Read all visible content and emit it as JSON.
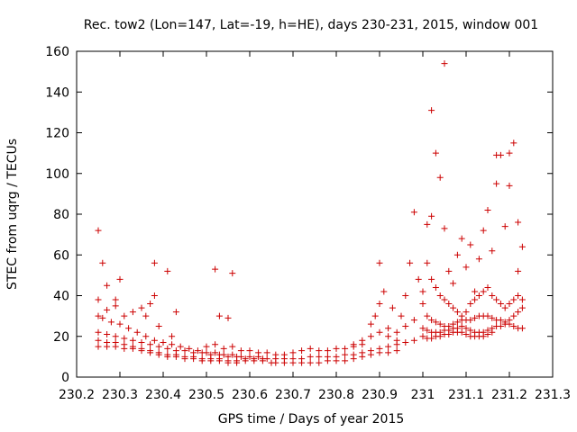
{
  "chart_data": {
    "type": "scatter",
    "title": "Rec. tow2 (Lon=147, Lat=-19, h=HE), days 230-231, 2015, window 001",
    "xlabel": "GPS time / Days of year 2015",
    "ylabel": "STEC from uqrg / TECUs",
    "xlim": [
      230.2,
      231.3
    ],
    "ylim": [
      0,
      160
    ],
    "xticks": [
      "230.2",
      "230.3",
      "230.4",
      "230.5",
      "230.6",
      "230.7",
      "230.8",
      "230.9",
      "231",
      "231.1",
      "231.2",
      "231.3"
    ],
    "yticks": [
      "0",
      "20",
      "40",
      "60",
      "80",
      "100",
      "120",
      "140",
      "160"
    ],
    "marker": "plus",
    "color": "#cc0000",
    "grid": false,
    "legend": "none",
    "points": [
      [
        230.25,
        72
      ],
      [
        230.26,
        56
      ],
      [
        230.27,
        45
      ],
      [
        230.29,
        38
      ],
      [
        230.3,
        48
      ],
      [
        230.35,
        34
      ],
      [
        230.37,
        36
      ],
      [
        230.38,
        40
      ],
      [
        230.38,
        56
      ],
      [
        230.41,
        52
      ],
      [
        230.43,
        32
      ],
      [
        230.52,
        53
      ],
      [
        230.53,
        30
      ],
      [
        230.55,
        29
      ],
      [
        230.56,
        51
      ],
      [
        230.25,
        38
      ],
      [
        230.27,
        33
      ],
      [
        230.29,
        35
      ],
      [
        230.31,
        30
      ],
      [
        230.33,
        32
      ],
      [
        230.36,
        30
      ],
      [
        230.39,
        25
      ],
      [
        230.42,
        20
      ],
      [
        230.25,
        30
      ],
      [
        230.26,
        29
      ],
      [
        230.28,
        27
      ],
      [
        230.3,
        26
      ],
      [
        230.32,
        24
      ],
      [
        230.34,
        22
      ],
      [
        230.36,
        20
      ],
      [
        230.38,
        18
      ],
      [
        230.4,
        17
      ],
      [
        230.42,
        16
      ],
      [
        230.44,
        15
      ],
      [
        230.46,
        14
      ],
      [
        230.48,
        13
      ],
      [
        230.5,
        12
      ],
      [
        230.52,
        12
      ],
      [
        230.54,
        11
      ],
      [
        230.56,
        11
      ],
      [
        230.58,
        10
      ],
      [
        230.6,
        10
      ],
      [
        230.62,
        10
      ],
      [
        230.25,
        22
      ],
      [
        230.27,
        21
      ],
      [
        230.29,
        20
      ],
      [
        230.31,
        19
      ],
      [
        230.33,
        18
      ],
      [
        230.35,
        17
      ],
      [
        230.37,
        16
      ],
      [
        230.39,
        15
      ],
      [
        230.41,
        14
      ],
      [
        230.43,
        13
      ],
      [
        230.45,
        13
      ],
      [
        230.47,
        12
      ],
      [
        230.49,
        12
      ],
      [
        230.51,
        11
      ],
      [
        230.53,
        11
      ],
      [
        230.55,
        10
      ],
      [
        230.57,
        10
      ],
      [
        230.59,
        9
      ],
      [
        230.61,
        9
      ],
      [
        230.63,
        9
      ],
      [
        230.25,
        18
      ],
      [
        230.27,
        17
      ],
      [
        230.29,
        17
      ],
      [
        230.31,
        16
      ],
      [
        230.33,
        15
      ],
      [
        230.35,
        14
      ],
      [
        230.37,
        13
      ],
      [
        230.39,
        12
      ],
      [
        230.41,
        11
      ],
      [
        230.43,
        11
      ],
      [
        230.45,
        10
      ],
      [
        230.47,
        10
      ],
      [
        230.49,
        9
      ],
      [
        230.51,
        9
      ],
      [
        230.53,
        9
      ],
      [
        230.55,
        8
      ],
      [
        230.57,
        8
      ],
      [
        230.59,
        8
      ],
      [
        230.61,
        8
      ],
      [
        230.63,
        8
      ],
      [
        230.65,
        7
      ],
      [
        230.25,
        15
      ],
      [
        230.27,
        15
      ],
      [
        230.29,
        15
      ],
      [
        230.31,
        14
      ],
      [
        230.33,
        14
      ],
      [
        230.35,
        13
      ],
      [
        230.37,
        12
      ],
      [
        230.39,
        11
      ],
      [
        230.41,
        10
      ],
      [
        230.43,
        10
      ],
      [
        230.45,
        9
      ],
      [
        230.47,
        9
      ],
      [
        230.49,
        8
      ],
      [
        230.51,
        8
      ],
      [
        230.53,
        8
      ],
      [
        230.55,
        7
      ],
      [
        230.57,
        7
      ],
      [
        230.5,
        15
      ],
      [
        230.52,
        16
      ],
      [
        230.54,
        14
      ],
      [
        230.56,
        15
      ],
      [
        230.58,
        13
      ],
      [
        230.6,
        13
      ],
      [
        230.62,
        12
      ],
      [
        230.64,
        12
      ],
      [
        230.66,
        11
      ],
      [
        230.68,
        11
      ],
      [
        230.7,
        12
      ],
      [
        230.72,
        13
      ],
      [
        230.74,
        14
      ],
      [
        230.76,
        13
      ],
      [
        230.78,
        13
      ],
      [
        230.8,
        14
      ],
      [
        230.82,
        14
      ],
      [
        230.84,
        15
      ],
      [
        230.86,
        16
      ],
      [
        230.64,
        9
      ],
      [
        230.66,
        9
      ],
      [
        230.68,
        9
      ],
      [
        230.7,
        9
      ],
      [
        230.72,
        9
      ],
      [
        230.74,
        10
      ],
      [
        230.76,
        10
      ],
      [
        230.78,
        10
      ],
      [
        230.8,
        10
      ],
      [
        230.82,
        11
      ],
      [
        230.84,
        11
      ],
      [
        230.86,
        12
      ],
      [
        230.88,
        13
      ],
      [
        230.9,
        14
      ],
      [
        230.92,
        15
      ],
      [
        230.94,
        16
      ],
      [
        230.66,
        7
      ],
      [
        230.68,
        7
      ],
      [
        230.7,
        7
      ],
      [
        230.72,
        7
      ],
      [
        230.74,
        7
      ],
      [
        230.76,
        7
      ],
      [
        230.78,
        8
      ],
      [
        230.8,
        8
      ],
      [
        230.82,
        8
      ],
      [
        230.84,
        9
      ],
      [
        230.86,
        10
      ],
      [
        230.88,
        11
      ],
      [
        230.9,
        12
      ],
      [
        230.92,
        12
      ],
      [
        230.94,
        13
      ],
      [
        230.88,
        26
      ],
      [
        230.89,
        30
      ],
      [
        230.9,
        36
      ],
      [
        230.91,
        42
      ],
      [
        230.9,
        56
      ],
      [
        230.93,
        34
      ],
      [
        230.95,
        30
      ],
      [
        230.96,
        40
      ],
      [
        230.97,
        56
      ],
      [
        230.98,
        81
      ],
      [
        230.99,
        48
      ],
      [
        231.0,
        42
      ],
      [
        230.92,
        24
      ],
      [
        230.94,
        22
      ],
      [
        230.96,
        25
      ],
      [
        230.98,
        28
      ],
      [
        231.01,
        75
      ],
      [
        231.02,
        79
      ],
      [
        231.02,
        131
      ],
      [
        231.03,
        110
      ],
      [
        231.04,
        98
      ],
      [
        231.05,
        73
      ],
      [
        231.05,
        154
      ],
      [
        231.06,
        52
      ],
      [
        231.07,
        46
      ],
      [
        231.08,
        60
      ],
      [
        231.09,
        68
      ],
      [
        231.1,
        54
      ],
      [
        231.11,
        65
      ],
      [
        231.12,
        42
      ],
      [
        231.13,
        58
      ],
      [
        231.14,
        72
      ],
      [
        231.15,
        82
      ],
      [
        231.16,
        62
      ],
      [
        231.17,
        95
      ],
      [
        231.17,
        109
      ],
      [
        231.18,
        109
      ],
      [
        231.19,
        74
      ],
      [
        231.2,
        110
      ],
      [
        231.2,
        94
      ],
      [
        231.21,
        115
      ],
      [
        231.22,
        76
      ],
      [
        231.23,
        64
      ],
      [
        231.22,
        52
      ],
      [
        231.01,
        56
      ],
      [
        231.02,
        48
      ],
      [
        231.03,
        44
      ],
      [
        231.04,
        40
      ],
      [
        231.05,
        38
      ],
      [
        231.06,
        36
      ],
      [
        231.07,
        34
      ],
      [
        231.08,
        32
      ],
      [
        231.09,
        30
      ],
      [
        231.1,
        32
      ],
      [
        231.11,
        36
      ],
      [
        231.12,
        38
      ],
      [
        231.13,
        40
      ],
      [
        231.14,
        42
      ],
      [
        231.15,
        44
      ],
      [
        231.16,
        40
      ],
      [
        231.17,
        38
      ],
      [
        231.18,
        36
      ],
      [
        231.19,
        34
      ],
      [
        231.2,
        36
      ],
      [
        231.21,
        38
      ],
      [
        231.22,
        40
      ],
      [
        231.23,
        38
      ],
      [
        231.0,
        36
      ],
      [
        231.01,
        30
      ],
      [
        231.02,
        28
      ],
      [
        231.03,
        27
      ],
      [
        231.04,
        26
      ],
      [
        231.05,
        25
      ],
      [
        231.06,
        25
      ],
      [
        231.07,
        26
      ],
      [
        231.08,
        27
      ],
      [
        231.09,
        28
      ],
      [
        231.1,
        28
      ],
      [
        231.11,
        28
      ],
      [
        231.12,
        29
      ],
      [
        231.13,
        30
      ],
      [
        231.14,
        30
      ],
      [
        231.15,
        30
      ],
      [
        231.16,
        29
      ],
      [
        231.17,
        28
      ],
      [
        231.18,
        28
      ],
      [
        231.19,
        27
      ],
      [
        231.2,
        28
      ],
      [
        231.21,
        30
      ],
      [
        231.22,
        32
      ],
      [
        231.23,
        34
      ],
      [
        231.0,
        24
      ],
      [
        231.01,
        23
      ],
      [
        231.02,
        22
      ],
      [
        231.03,
        22
      ],
      [
        231.04,
        22
      ],
      [
        231.05,
        23
      ],
      [
        231.06,
        23
      ],
      [
        231.07,
        24
      ],
      [
        231.08,
        24
      ],
      [
        231.09,
        25
      ],
      [
        231.1,
        24
      ],
      [
        231.11,
        23
      ],
      [
        231.12,
        22
      ],
      [
        231.13,
        22
      ],
      [
        231.14,
        22
      ],
      [
        231.15,
        23
      ],
      [
        231.16,
        24
      ],
      [
        231.17,
        25
      ],
      [
        231.18,
        25
      ],
      [
        231.19,
        26
      ],
      [
        231.2,
        26
      ],
      [
        231.21,
        25
      ],
      [
        231.22,
        24
      ],
      [
        231.23,
        24
      ],
      [
        231.0,
        20
      ],
      [
        231.01,
        19
      ],
      [
        231.02,
        19
      ],
      [
        231.03,
        20
      ],
      [
        231.04,
        20
      ],
      [
        231.05,
        21
      ],
      [
        231.06,
        21
      ],
      [
        231.07,
        22
      ],
      [
        231.08,
        22
      ],
      [
        231.09,
        22
      ],
      [
        231.1,
        21
      ],
      [
        231.11,
        20
      ],
      [
        231.12,
        20
      ],
      [
        231.13,
        20
      ],
      [
        231.14,
        20
      ],
      [
        231.15,
        21
      ],
      [
        231.16,
        22
      ],
      [
        230.98,
        18
      ],
      [
        230.96,
        17
      ],
      [
        230.94,
        18
      ],
      [
        230.92,
        20
      ],
      [
        230.9,
        22
      ],
      [
        230.88,
        20
      ],
      [
        230.86,
        18
      ],
      [
        230.84,
        16
      ]
    ]
  }
}
